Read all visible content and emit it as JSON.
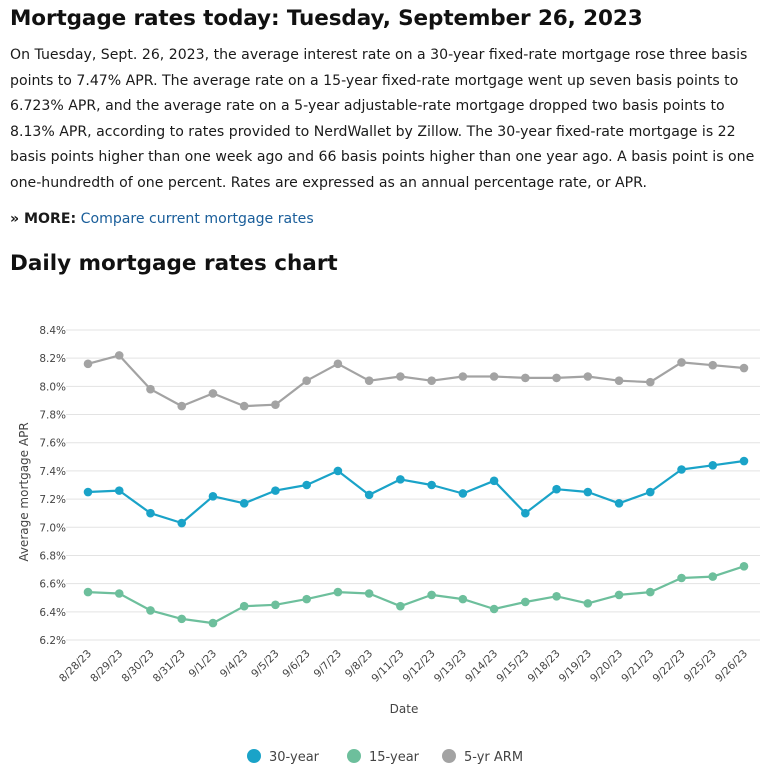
{
  "article": {
    "title": "Mortgage rates today: Tuesday, September 26, 2023",
    "body": "On Tuesday, Sept. 26, 2023, the average interest rate on a 30-year fixed-rate mortgage rose three basis points to 7.47% APR. The average rate on a 15-year fixed-rate mortgage went up seven basis points to 6.723% APR, and the average rate on a 5-year adjustable-rate mortgage dropped two basis points to 8.13% APR, according to rates provided to NerdWallet by Zillow. The 30-year fixed-rate mortgage is 22 basis points higher than one week ago and 66 basis points higher than one year ago. A basis point is one one-hundredth of one percent. Rates are expressed as an annual percentage rate, or APR.",
    "more_label": "» MORE:",
    "more_link": "Compare current mortgage rates",
    "chart_heading": "Daily mortgage rates chart"
  },
  "chart_data": {
    "type": "line",
    "xlabel": "Date",
    "ylabel": "Average mortgage APR",
    "ylim": [
      6.2,
      8.4
    ],
    "yticks": [
      "6.2%",
      "6.4%",
      "6.6%",
      "6.8%",
      "7.0%",
      "7.2%",
      "7.4%",
      "7.6%",
      "7.8%",
      "8.0%",
      "8.2%",
      "8.4%"
    ],
    "grid": true,
    "legend_position": "bottom",
    "categories": [
      "8/28/23",
      "8/29/23",
      "8/30/23",
      "8/31/23",
      "9/1/23",
      "9/4/23",
      "9/5/23",
      "9/6/23",
      "9/7/23",
      "9/8/23",
      "9/11/23",
      "9/12/23",
      "9/13/23",
      "9/14/23",
      "9/15/23",
      "9/18/23",
      "9/19/23",
      "9/20/23",
      "9/21/23",
      "9/22/23",
      "9/25/23",
      "9/26/23"
    ],
    "series": [
      {
        "name": "30-year",
        "color": "#1aa3c8",
        "values": [
          7.25,
          7.26,
          7.1,
          7.03,
          7.22,
          7.17,
          7.26,
          7.3,
          7.4,
          7.23,
          7.34,
          7.3,
          7.24,
          7.33,
          7.1,
          7.27,
          7.25,
          7.17,
          7.25,
          7.41,
          7.44,
          7.47
        ]
      },
      {
        "name": "15-year",
        "color": "#6dbf9c",
        "values": [
          6.54,
          6.53,
          6.41,
          6.35,
          6.32,
          6.44,
          6.45,
          6.49,
          6.54,
          6.53,
          6.44,
          6.52,
          6.49,
          6.42,
          6.47,
          6.51,
          6.46,
          6.52,
          6.54,
          6.64,
          6.65,
          6.723
        ]
      },
      {
        "name": "5-yr ARM",
        "color": "#a3a3a3",
        "values": [
          8.16,
          8.22,
          7.98,
          7.86,
          7.95,
          7.86,
          7.87,
          8.04,
          8.16,
          8.04,
          8.07,
          8.04,
          8.07,
          8.07,
          8.06,
          8.06,
          8.07,
          8.04,
          8.03,
          8.17,
          8.15,
          8.13
        ]
      }
    ]
  }
}
